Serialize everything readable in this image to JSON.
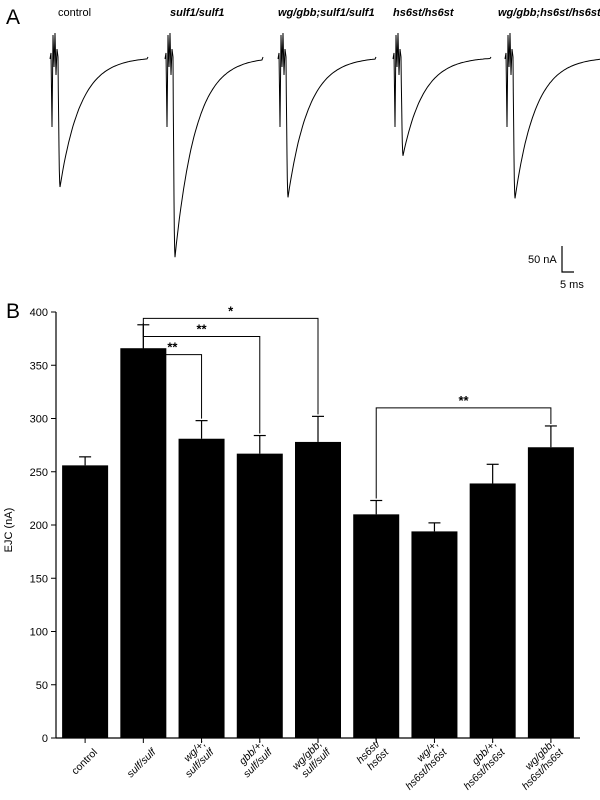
{
  "panels": {
    "a_label": "A",
    "b_label": "B"
  },
  "traces": {
    "items": [
      {
        "label": "control",
        "italic": false,
        "amplitude_nA": 250
      },
      {
        "label": "sulf1/sulf1",
        "italic": true,
        "amplitude_nA": 385
      },
      {
        "label": "wg/gbb;sulf1/sulf1",
        "italic": true,
        "amplitude_nA": 270
      },
      {
        "label": "hs6st/hs6st",
        "italic": true,
        "amplitude_nA": 190
      },
      {
        "label": "wg/gbb;hs6st/hs6st",
        "italic": true,
        "amplitude_nA": 272
      }
    ],
    "scale_bar": {
      "current_label": "50 nA",
      "time_label": "5 ms"
    }
  },
  "chart_data": {
    "type": "bar",
    "title": "",
    "xlabel": "",
    "ylabel": "EJC (nA)",
    "ylim": [
      0,
      400
    ],
    "yticks": [
      0,
      50,
      100,
      150,
      200,
      250,
      300,
      350,
      400
    ],
    "categories": [
      {
        "lines": [
          "control"
        ],
        "italic": false
      },
      {
        "lines": [
          "sulf/sulf"
        ],
        "italic": true
      },
      {
        "lines": [
          "wg/+;",
          "sulf/sulf"
        ],
        "italic": true
      },
      {
        "lines": [
          "gbb/+;",
          "sulf/sulf"
        ],
        "italic": true
      },
      {
        "lines": [
          "wg/gbb;",
          "sulf/sulf"
        ],
        "italic": true
      },
      {
        "lines": [
          "hs6st/",
          "hs6st"
        ],
        "italic": true
      },
      {
        "lines": [
          "wg/+;",
          "hs6st/hs6st"
        ],
        "italic": true
      },
      {
        "lines": [
          "gbb/+;",
          "hs6st/hs6st"
        ],
        "italic": true
      },
      {
        "lines": [
          "wg/gbb;",
          "hs6st/hs6st"
        ],
        "italic": true
      }
    ],
    "values": [
      256,
      366,
      281,
      267,
      278,
      210,
      194,
      239,
      273
    ],
    "errors": [
      8,
      22,
      17,
      17,
      24,
      13,
      8,
      18,
      20
    ],
    "bar_color": "#000000",
    "significance": [
      {
        "from": 1,
        "to": 4,
        "label": "*",
        "height": 394
      },
      {
        "from": 1,
        "to": 3,
        "label": "**",
        "height": 377
      },
      {
        "from": 1,
        "to": 2,
        "label": "**",
        "height": 360
      },
      {
        "from": 5,
        "to": 8,
        "label": "**",
        "height": 310
      }
    ]
  }
}
